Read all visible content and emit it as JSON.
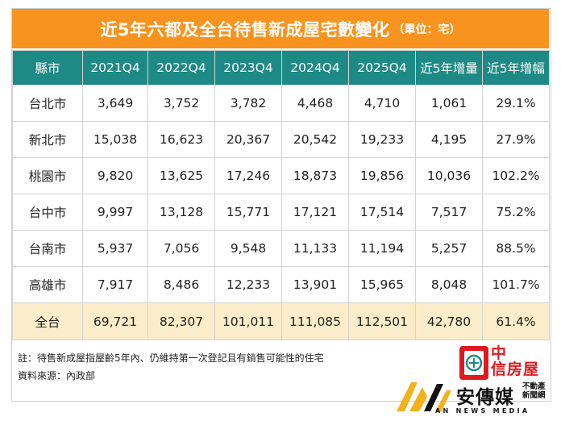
{
  "title": {
    "main": "近5年六都及全台待售新成屋宅數變化",
    "unit": "（單位：宅）"
  },
  "table": {
    "headers": [
      "縣市",
      "2021Q4",
      "2022Q4",
      "2023Q4",
      "2024Q4",
      "2025Q4",
      "近5年增量",
      "近5年增幅"
    ],
    "rows": [
      [
        "台北市",
        "3,649",
        "3,752",
        "3,782",
        "4,468",
        "4,710",
        "1,061",
        "29.1%"
      ],
      [
        "新北市",
        "15,038",
        "16,623",
        "20,367",
        "20,542",
        "19,233",
        "4,195",
        "27.9%"
      ],
      [
        "桃園市",
        "9,820",
        "13,625",
        "17,246",
        "18,873",
        "19,856",
        "10,036",
        "102.2%"
      ],
      [
        "台中市",
        "9,997",
        "13,128",
        "15,771",
        "17,121",
        "17,514",
        "7,517",
        "75.2%"
      ],
      [
        "台南市",
        "5,937",
        "7,056",
        "9,548",
        "11,133",
        "11,194",
        "5,257",
        "88.5%"
      ],
      [
        "高雄市",
        "7,917",
        "8,486",
        "12,233",
        "13,901",
        "15,965",
        "8,048",
        "101.7%"
      ]
    ],
    "total": [
      "全台",
      "69,721",
      "82,307",
      "101,011",
      "111,085",
      "112,501",
      "42,780",
      "61.4%"
    ]
  },
  "notes": {
    "note": "註：待售新成屋指屋齡5年內、仍維持第一次登記且有銷售可能性的住宅",
    "source": "資料來源：內政部"
  },
  "brand": {
    "zhong_line1": "中",
    "zhong_line2": "信房屋",
    "an_name": "安傳媒",
    "an_sub1": "不動產",
    "an_sub2": "新聞網",
    "an_news": "AN NEWS MEDIA",
    "red": "#e0191e",
    "teal": "#1e8a86",
    "orange": "#f7931e",
    "gold": "#f3b21b"
  }
}
